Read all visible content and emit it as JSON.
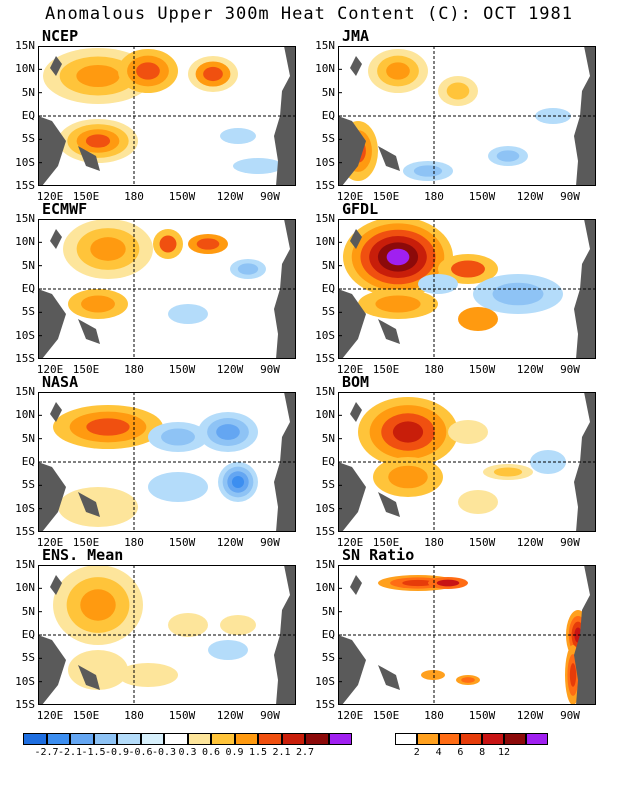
{
  "title": "Anomalous Upper 300m Heat Content (C): OCT 1981",
  "axes": {
    "y_ticks": [
      "15N",
      "10N",
      "5N",
      "EQ",
      "5S",
      "10S",
      "15S"
    ],
    "x_ticks": [
      "120E",
      "150E",
      "180",
      "150W",
      "120W",
      "90W"
    ]
  },
  "panels": [
    {
      "label": "NCEP"
    },
    {
      "label": "JMA"
    },
    {
      "label": "ECMWF"
    },
    {
      "label": "GFDL"
    },
    {
      "label": "NASA"
    },
    {
      "label": "BOM"
    },
    {
      "label": "ENS. Mean"
    },
    {
      "label": "SN Ratio"
    }
  ],
  "colorbar_anomaly": {
    "colors": [
      "#1e6ee0",
      "#3c8ef0",
      "#64a6f2",
      "#8ec3f5",
      "#b4dcfa",
      "#d7f0fc",
      "#ffffff",
      "#fde59b",
      "#ffc43a",
      "#ff9a10",
      "#f05010",
      "#c81e0a",
      "#8c0a0a",
      "#a020f0"
    ],
    "ticks": [
      "-2.7",
      "-2.1",
      "-1.5",
      "-0.9",
      "-0.6",
      "-0.3",
      "0.3",
      "0.6",
      "0.9",
      "1.5",
      "2.1",
      "2.7"
    ]
  },
  "colorbar_sn": {
    "colors": [
      "#ffffff",
      "#ffa01e",
      "#ff6c14",
      "#e63c0a",
      "#c81414",
      "#8c0a0a",
      "#a020f0"
    ],
    "ticks": [
      "2",
      "4",
      "6",
      "8",
      "12"
    ]
  },
  "colors": {
    "land": "#5a5a5a",
    "frame": "#000000"
  }
}
